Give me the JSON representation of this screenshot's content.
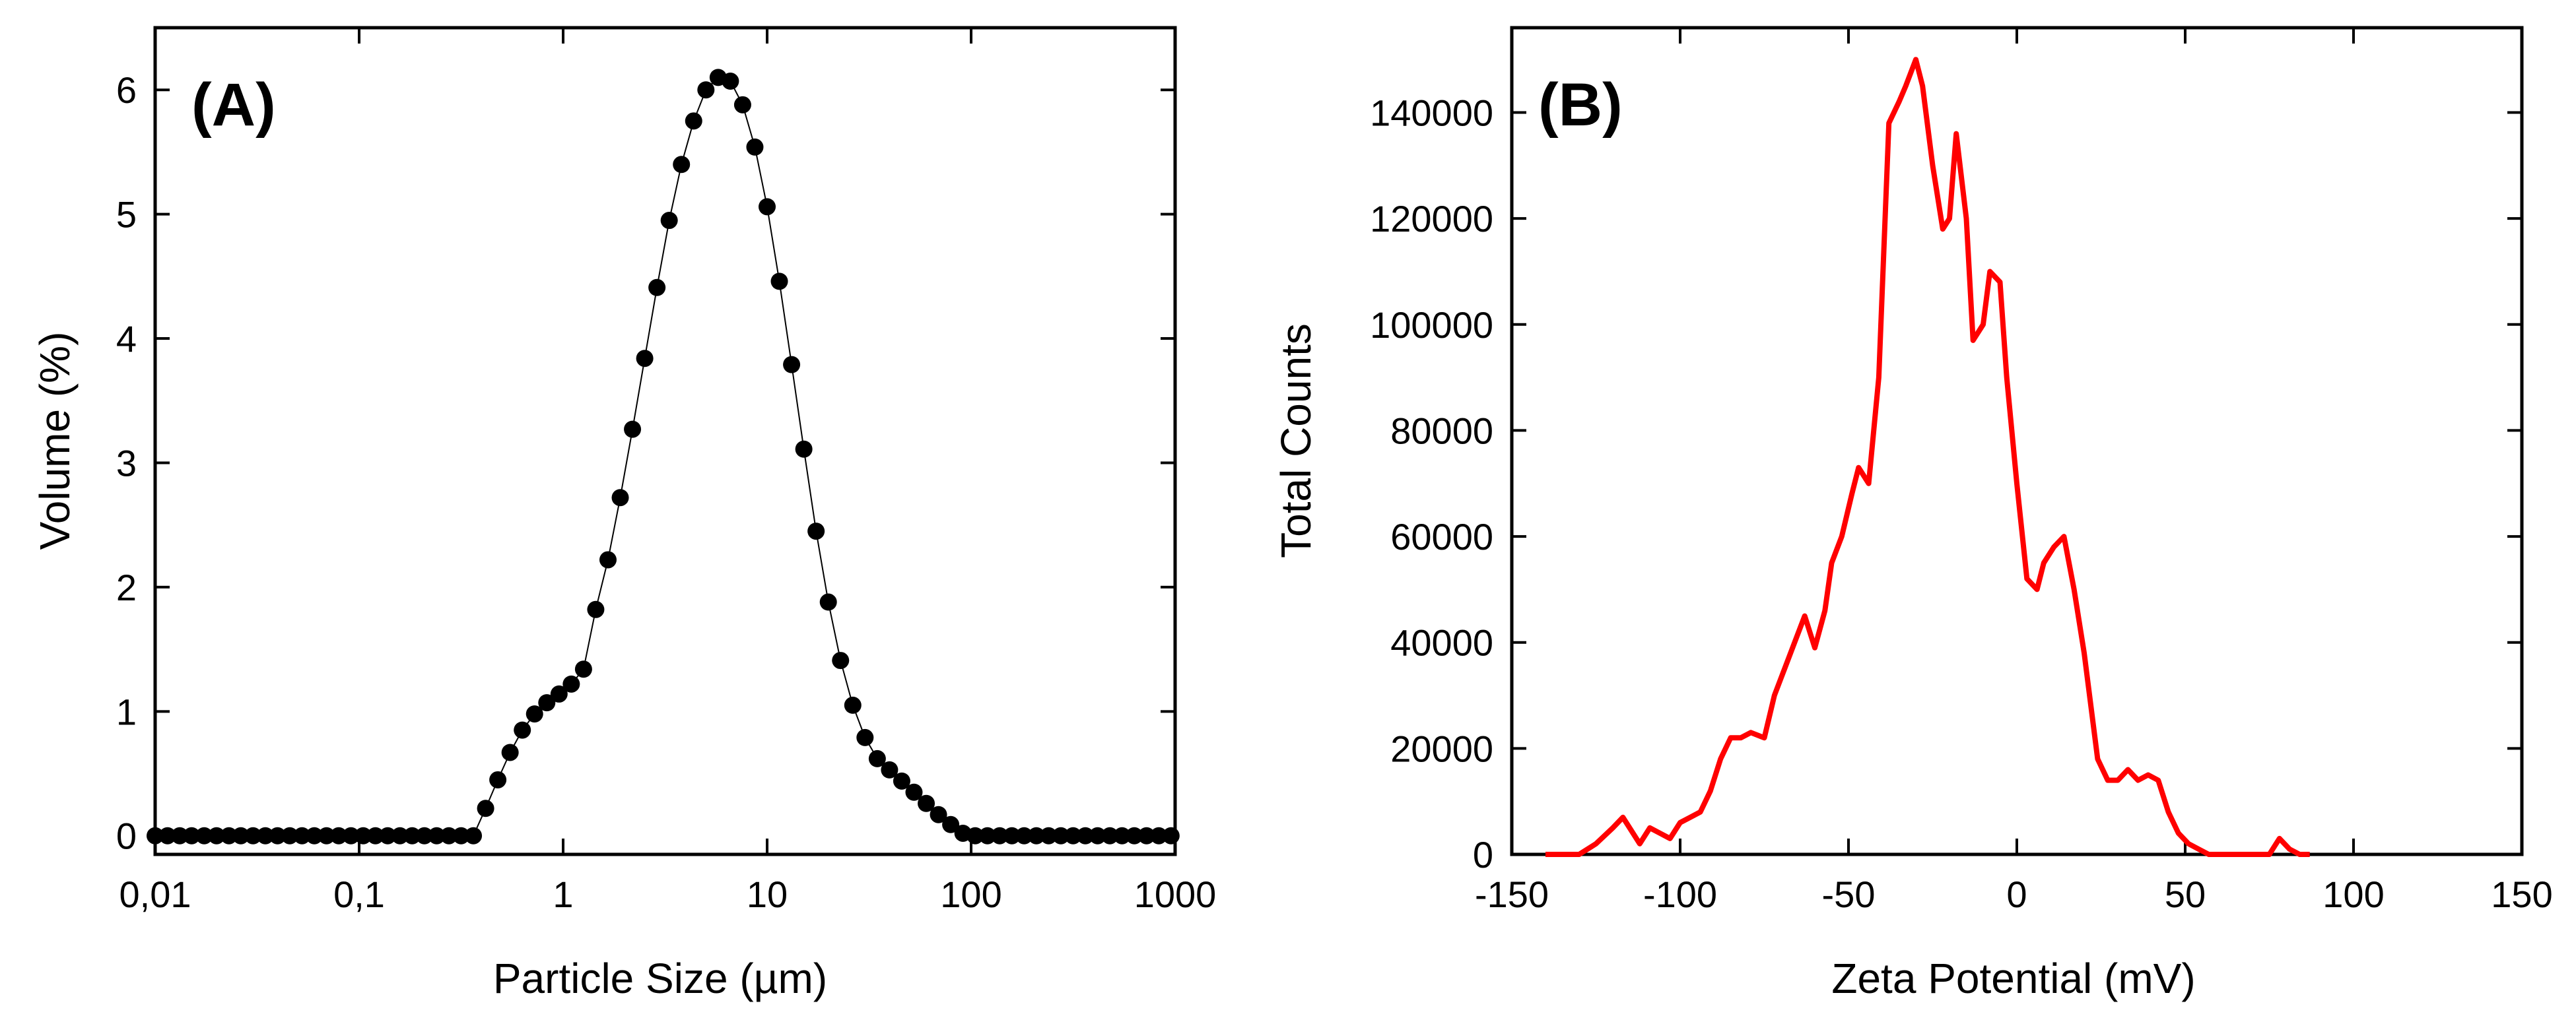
{
  "chart_data": [
    {
      "panel": "(A)",
      "type": "scatter",
      "x_scale": "log",
      "xlabel": "Particle Size (µm)",
      "ylabel": "Volume (%)",
      "xlim": [
        0.01,
        1000
      ],
      "ylim": [
        -0.15,
        6.5
      ],
      "x_ticks": [
        0.01,
        0.1,
        1,
        10,
        100,
        1000
      ],
      "x_tick_labels": [
        "0,01",
        "0,1",
        "1",
        "10",
        "100",
        "1000"
      ],
      "y_ticks": [
        0,
        1,
        2,
        3,
        4,
        5,
        6
      ],
      "y_tick_labels": [
        "0",
        "1",
        "2",
        "3",
        "4",
        "5",
        "6"
      ],
      "series": [
        {
          "name": "Volume",
          "marker": "circle",
          "line": "thin",
          "color": "#000000",
          "x": [
            0.01,
            0.0115,
            0.0132,
            0.0151,
            0.0174,
            0.02,
            0.023,
            0.0263,
            0.0302,
            0.0347,
            0.0398,
            0.0457,
            0.0525,
            0.0603,
            0.0692,
            0.0794,
            0.0912,
            0.1047,
            0.1202,
            0.138,
            0.1585,
            0.182,
            0.2089,
            0.2399,
            0.2754,
            0.3162,
            0.3631,
            0.4169,
            0.4786,
            0.5495,
            0.631,
            0.7244,
            0.8318,
            0.955,
            1.0965,
            1.2589,
            1.4454,
            1.6596,
            1.9055,
            2.1878,
            2.5119,
            2.884,
            3.3113,
            3.8019,
            4.3652,
            5.0119,
            5.7544,
            6.6069,
            7.5858,
            8.7096,
            10.0,
            11.4815,
            13.1826,
            15.1356,
            17.378,
            19.9526,
            22.9087,
            26.3027,
            30.1995,
            34.6737,
            39.8107,
            45.7088,
            52.4807,
            60.256,
            69.1831,
            79.4328,
            91.2011,
            104.7129,
            120.2264,
            138.0384,
            158.4893,
            181.9701,
            208.9296,
            239.8833,
            275.4229,
            316.2278,
            363.0781,
            416.8694,
            478.6301,
            549.5409,
            630.9573,
            724.436,
            831.7638,
            954.9926
          ],
          "y": [
            0,
            0,
            0,
            0,
            0,
            0,
            0,
            0,
            0,
            0,
            0,
            0,
            0,
            0,
            0,
            0,
            0,
            0,
            0,
            0,
            0,
            0,
            0,
            0,
            0,
            0,
            0,
            0.22,
            0.45,
            0.67,
            0.85,
            0.98,
            1.07,
            1.14,
            1.22,
            1.34,
            1.82,
            2.22,
            2.72,
            3.27,
            3.84,
            4.41,
            4.95,
            5.4,
            5.75,
            6.0,
            6.1,
            6.07,
            5.88,
            5.54,
            5.06,
            4.46,
            3.79,
            3.11,
            2.45,
            1.88,
            1.41,
            1.05,
            0.79,
            0.62,
            0.53,
            0.44,
            0.35,
            0.26,
            0.17,
            0.09,
            0.02,
            0,
            0,
            0,
            0,
            0,
            0,
            0,
            0,
            0,
            0,
            0,
            0,
            0,
            0,
            0,
            0,
            0
          ]
        }
      ]
    },
    {
      "panel": "(B)",
      "type": "line",
      "xlabel": "Zeta Potential (mV)",
      "ylabel": "Total Counts",
      "xlim": [
        -150,
        150
      ],
      "ylim": [
        0,
        156000
      ],
      "x_ticks": [
        -150,
        -100,
        -50,
        0,
        50,
        100,
        150
      ],
      "x_tick_labels": [
        "-150",
        "-100",
        "-50",
        "0",
        "50",
        "100",
        "150"
      ],
      "y_ticks": [
        0,
        20000,
        40000,
        60000,
        80000,
        100000,
        120000,
        140000
      ],
      "y_tick_labels": [
        "0",
        "20000",
        "40000",
        "60000",
        "80000",
        "100000",
        "120000",
        "140000"
      ],
      "series": [
        {
          "name": "Total Counts",
          "color": "#ff0000",
          "x": [
            -140,
            -130,
            -125,
            -120,
            -117,
            -115,
            -112,
            -109,
            -106,
            -103,
            -100,
            -97,
            -94,
            -91,
            -88,
            -85,
            -82,
            -79,
            -75,
            -72,
            -69,
            -66,
            -63,
            -60,
            -57,
            -55,
            -52,
            -49,
            -47,
            -44,
            -41,
            -38,
            -35,
            -33,
            -30,
            -28,
            -25,
            -22,
            -20,
            -18,
            -15,
            -13,
            -10,
            -8,
            -5,
            -3,
            0,
            3,
            6,
            8,
            11,
            14,
            17,
            20,
            24,
            27,
            30,
            33,
            36,
            39,
            42,
            45,
            48,
            51,
            54,
            57,
            60,
            63,
            66,
            70,
            75,
            78,
            81,
            84,
            87
          ],
          "y": [
            0,
            0,
            2000,
            5000,
            7000,
            5000,
            2000,
            5000,
            4000,
            3000,
            6000,
            7000,
            8000,
            12000,
            18000,
            22000,
            22000,
            23000,
            22000,
            30000,
            35000,
            40000,
            45000,
            39000,
            46000,
            55000,
            60000,
            68000,
            73000,
            70000,
            90000,
            138000,
            142000,
            145000,
            150000,
            145000,
            130000,
            118000,
            120000,
            136000,
            120000,
            97000,
            100000,
            110000,
            108000,
            90000,
            70000,
            52000,
            50000,
            55000,
            58000,
            60000,
            50000,
            38000,
            18000,
            14000,
            14000,
            16000,
            14000,
            15000,
            14000,
            8000,
            4000,
            2000,
            1000,
            0,
            0,
            0,
            0,
            0,
            0,
            3000,
            1000,
            0,
            0
          ]
        }
      ]
    }
  ]
}
